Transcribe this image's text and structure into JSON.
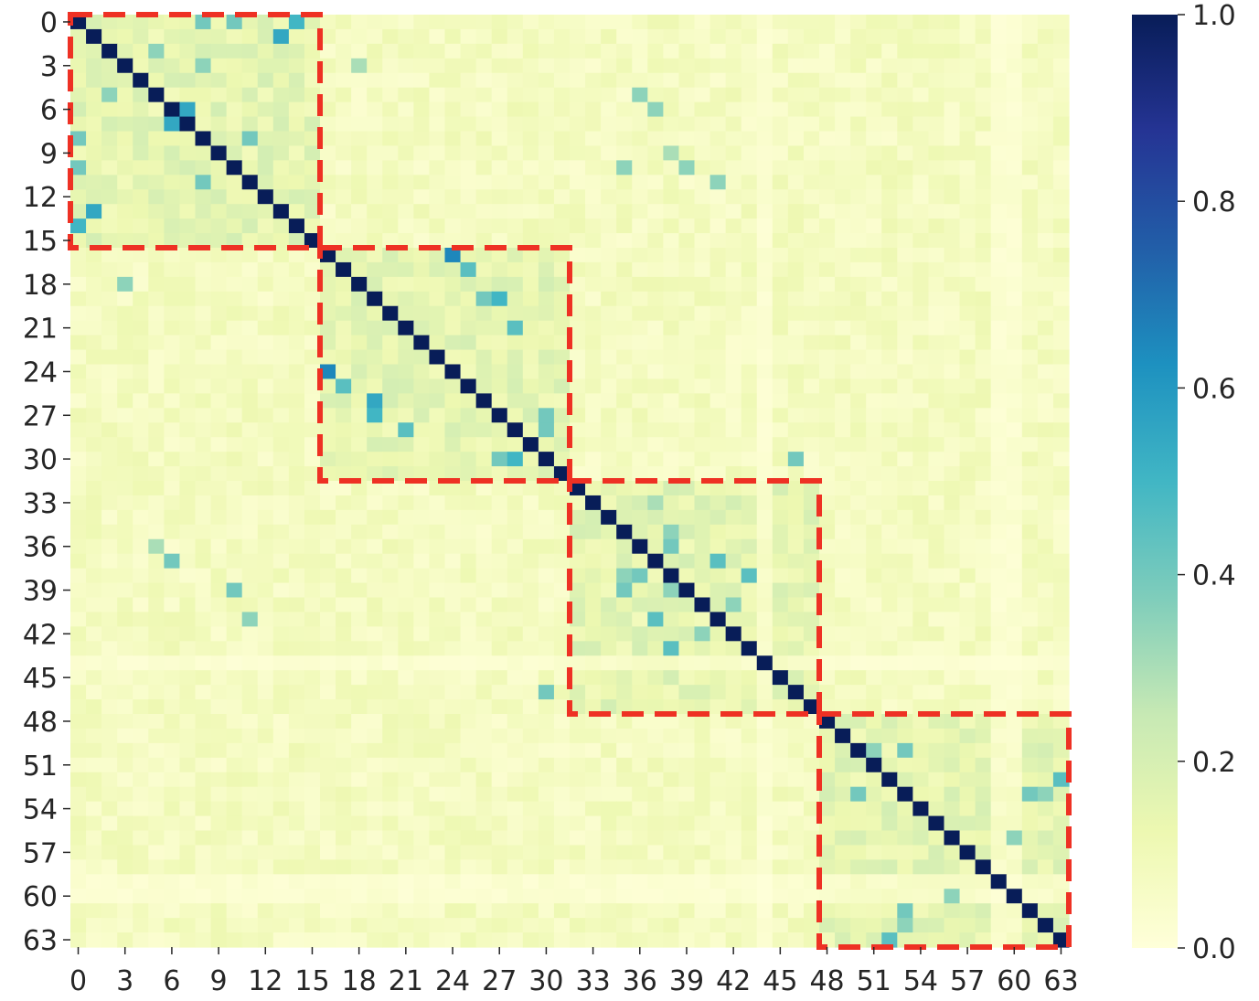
{
  "chart_data": {
    "type": "heatmap",
    "title": "",
    "xlabel": "",
    "ylabel": "",
    "size": 64,
    "x_tick_labels": [
      "0",
      "3",
      "6",
      "9",
      "12",
      "15",
      "18",
      "21",
      "24",
      "27",
      "30",
      "33",
      "36",
      "39",
      "42",
      "45",
      "48",
      "51",
      "54",
      "57",
      "60",
      "63"
    ],
    "y_tick_labels": [
      "0",
      "3",
      "6",
      "9",
      "12",
      "15",
      "18",
      "21",
      "24",
      "27",
      "30",
      "33",
      "36",
      "39",
      "42",
      "45",
      "48",
      "51",
      "54",
      "57",
      "60",
      "63"
    ],
    "value_range": [
      0.0,
      1.0
    ],
    "colorbar": {
      "tick_labels": [
        "0.0",
        "0.2",
        "0.4",
        "0.6",
        "0.8",
        "1.0"
      ],
      "tick_values": [
        0.0,
        0.2,
        0.4,
        0.6,
        0.8,
        1.0
      ]
    },
    "colormap": {
      "name": "YlGnBu",
      "stops": [
        "#ffffd9",
        "#edf8b1",
        "#c7e9b4",
        "#7fcdbb",
        "#41b6c4",
        "#1d91c0",
        "#225ea8",
        "#253494",
        "#081d58"
      ]
    },
    "diagonal_value": 1.0,
    "high_cells": [
      [
        0,
        14,
        0.5
      ],
      [
        14,
        0,
        0.5
      ],
      [
        0,
        10,
        0.4
      ],
      [
        10,
        0,
        0.4
      ],
      [
        6,
        7,
        0.55
      ],
      [
        7,
        6,
        0.55
      ],
      [
        13,
        1,
        0.55
      ],
      [
        1,
        13,
        0.55
      ],
      [
        2,
        5,
        0.35
      ],
      [
        5,
        2,
        0.35
      ],
      [
        8,
        11,
        0.4
      ],
      [
        11,
        8,
        0.4
      ],
      [
        3,
        8,
        0.35
      ],
      [
        8,
        0,
        0.4
      ],
      [
        0,
        8,
        0.4
      ],
      [
        16,
        24,
        0.65
      ],
      [
        24,
        16,
        0.65
      ],
      [
        17,
        25,
        0.45
      ],
      [
        25,
        17,
        0.45
      ],
      [
        19,
        27,
        0.5
      ],
      [
        27,
        19,
        0.5
      ],
      [
        21,
        28,
        0.45
      ],
      [
        28,
        21,
        0.45
      ],
      [
        30,
        28,
        0.5
      ],
      [
        28,
        30,
        0.4
      ],
      [
        27,
        30,
        0.4
      ],
      [
        30,
        27,
        0.4
      ],
      [
        26,
        19,
        0.55
      ],
      [
        19,
        26,
        0.4
      ],
      [
        36,
        38,
        0.4
      ],
      [
        38,
        36,
        0.4
      ],
      [
        37,
        41,
        0.45
      ],
      [
        41,
        37,
        0.45
      ],
      [
        39,
        38,
        0.35
      ],
      [
        43,
        38,
        0.45
      ],
      [
        38,
        43,
        0.45
      ],
      [
        46,
        30,
        0.4
      ],
      [
        30,
        46,
        0.4
      ],
      [
        33,
        37,
        0.3
      ],
      [
        40,
        42,
        0.35
      ],
      [
        42,
        40,
        0.35
      ],
      [
        38,
        35,
        0.35
      ],
      [
        35,
        38,
        0.35
      ],
      [
        39,
        35,
        0.4
      ],
      [
        50,
        53,
        0.4
      ],
      [
        53,
        50,
        0.4
      ],
      [
        52,
        63,
        0.45
      ],
      [
        63,
        52,
        0.45
      ],
      [
        53,
        62,
        0.35
      ],
      [
        62,
        53,
        0.35
      ],
      [
        56,
        60,
        0.35
      ],
      [
        60,
        56,
        0.35
      ],
      [
        61,
        53,
        0.4
      ],
      [
        53,
        61,
        0.4
      ],
      [
        50,
        51,
        0.35
      ],
      [
        37,
        6,
        0.4
      ],
      [
        6,
        37,
        0.35
      ],
      [
        39,
        10,
        0.4
      ],
      [
        10,
        39,
        0.35
      ],
      [
        41,
        11,
        0.35
      ],
      [
        11,
        41,
        0.35
      ],
      [
        18,
        3,
        0.35
      ],
      [
        3,
        18,
        0.3
      ],
      [
        5,
        36,
        0.35
      ],
      [
        36,
        5,
        0.3
      ],
      [
        10,
        35,
        0.35
      ],
      [
        9,
        38,
        0.3
      ]
    ],
    "dashed_boxes": [
      {
        "from": 0,
        "to": 15
      },
      {
        "from": 16,
        "to": 31
      },
      {
        "from": 32,
        "to": 47
      },
      {
        "from": 48,
        "to": 63
      }
    ],
    "box_color": "#ee3124"
  }
}
